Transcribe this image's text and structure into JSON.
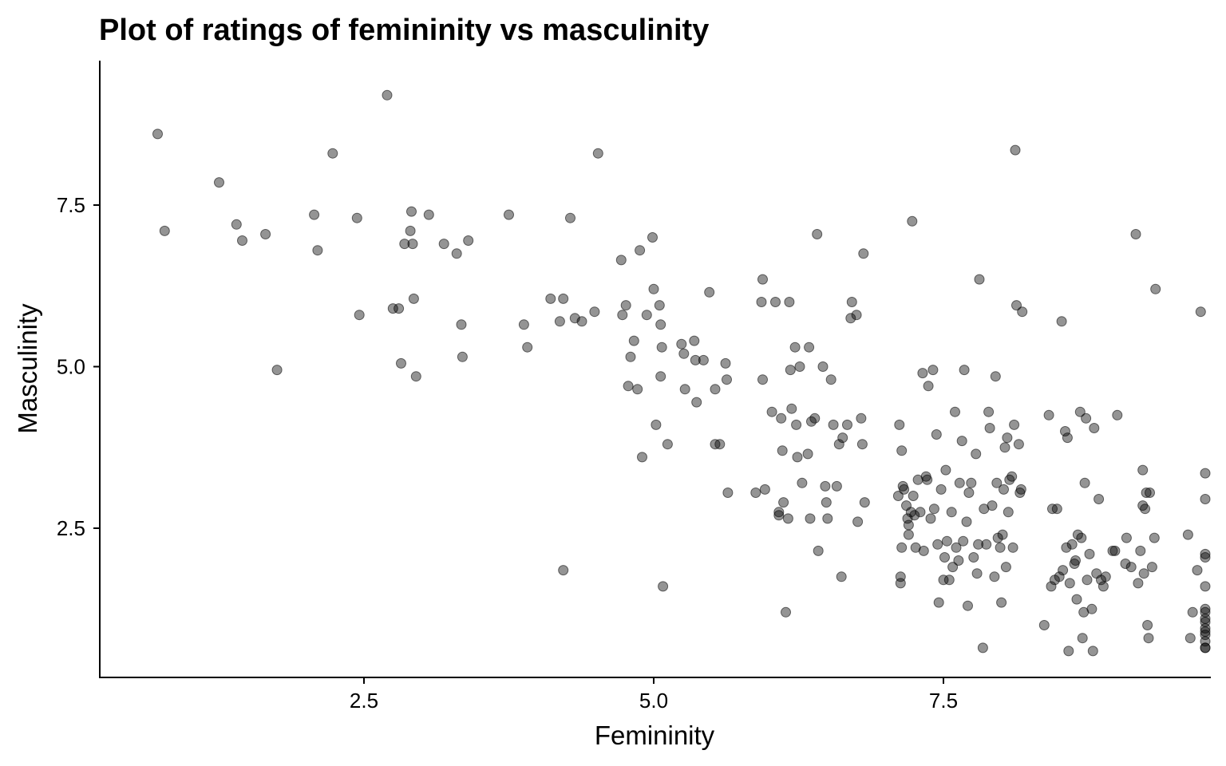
{
  "chart_data": {
    "type": "scatter",
    "title": "Plot of ratings of femininity vs masculinity",
    "xlabel": "Femininity",
    "ylabel": "Masculinity",
    "xlim": [
      0.3,
      9.9
    ],
    "ylim": [
      0.6,
      9.4
    ],
    "xticks": [
      2.5,
      5.0,
      7.5
    ],
    "xtick_labels": [
      "2.5",
      "5.0",
      "7.5"
    ],
    "yticks": [
      2.5,
      5.0,
      7.5
    ],
    "ytick_labels": [
      "2.5",
      "5.0",
      "7.5"
    ],
    "grid": false,
    "legend": "none",
    "point_color": "#000000",
    "point_opacity": 0.42,
    "points": [
      [
        0.72,
        8.6
      ],
      [
        0.78,
        7.1
      ],
      [
        1.25,
        7.85
      ],
      [
        1.4,
        7.2
      ],
      [
        1.45,
        6.95
      ],
      [
        1.65,
        7.05
      ],
      [
        1.75,
        4.95
      ],
      [
        2.07,
        7.35
      ],
      [
        2.1,
        6.8
      ],
      [
        2.23,
        8.3
      ],
      [
        2.44,
        7.3
      ],
      [
        2.46,
        5.8
      ],
      [
        2.7,
        9.2
      ],
      [
        2.75,
        5.9
      ],
      [
        2.8,
        5.9
      ],
      [
        2.82,
        5.05
      ],
      [
        2.85,
        6.9
      ],
      [
        2.9,
        7.1
      ],
      [
        2.91,
        7.4
      ],
      [
        2.92,
        6.9
      ],
      [
        2.93,
        6.05
      ],
      [
        2.95,
        4.85
      ],
      [
        3.06,
        7.35
      ],
      [
        3.19,
        6.9
      ],
      [
        3.3,
        6.75
      ],
      [
        3.34,
        5.65
      ],
      [
        3.35,
        5.15
      ],
      [
        3.4,
        6.95
      ],
      [
        3.75,
        7.35
      ],
      [
        3.88,
        5.65
      ],
      [
        3.91,
        5.3
      ],
      [
        4.11,
        6.05
      ],
      [
        4.19,
        5.7
      ],
      [
        4.22,
        6.05
      ],
      [
        4.22,
        1.85
      ],
      [
        4.28,
        7.3
      ],
      [
        4.32,
        5.75
      ],
      [
        4.38,
        5.7
      ],
      [
        4.49,
        5.85
      ],
      [
        4.52,
        8.3
      ],
      [
        4.72,
        6.65
      ],
      [
        4.73,
        5.8
      ],
      [
        4.76,
        5.95
      ],
      [
        4.78,
        4.7
      ],
      [
        4.8,
        5.15
      ],
      [
        4.83,
        5.4
      ],
      [
        4.86,
        4.65
      ],
      [
        4.88,
        6.8
      ],
      [
        4.9,
        3.6
      ],
      [
        4.94,
        5.8
      ],
      [
        4.99,
        7.0
      ],
      [
        5.0,
        6.2
      ],
      [
        5.02,
        4.1
      ],
      [
        5.05,
        5.95
      ],
      [
        5.06,
        4.85
      ],
      [
        5.06,
        5.65
      ],
      [
        5.07,
        5.3
      ],
      [
        5.08,
        1.6
      ],
      [
        5.12,
        3.8
      ],
      [
        5.24,
        5.35
      ],
      [
        5.26,
        5.2
      ],
      [
        5.27,
        4.65
      ],
      [
        5.35,
        5.4
      ],
      [
        5.36,
        5.1
      ],
      [
        5.37,
        4.45
      ],
      [
        5.43,
        5.1
      ],
      [
        5.48,
        6.15
      ],
      [
        5.53,
        4.65
      ],
      [
        5.53,
        3.8
      ],
      [
        5.57,
        3.8
      ],
      [
        5.62,
        5.05
      ],
      [
        5.63,
        4.8
      ],
      [
        5.64,
        3.05
      ],
      [
        5.88,
        3.05
      ],
      [
        5.93,
        6.0
      ],
      [
        5.94,
        6.35
      ],
      [
        5.94,
        4.8
      ],
      [
        5.96,
        3.1
      ],
      [
        6.02,
        4.3
      ],
      [
        6.05,
        6.0
      ],
      [
        6.08,
        2.7
      ],
      [
        6.08,
        2.75
      ],
      [
        6.1,
        4.2
      ],
      [
        6.11,
        3.7
      ],
      [
        6.12,
        2.9
      ],
      [
        6.14,
        1.2
      ],
      [
        6.16,
        2.65
      ],
      [
        6.17,
        6.0
      ],
      [
        6.18,
        4.95
      ],
      [
        6.19,
        4.35
      ],
      [
        6.22,
        5.3
      ],
      [
        6.23,
        4.1
      ],
      [
        6.24,
        3.6
      ],
      [
        6.26,
        5.0
      ],
      [
        6.28,
        3.2
      ],
      [
        6.33,
        3.65
      ],
      [
        6.34,
        5.3
      ],
      [
        6.35,
        2.65
      ],
      [
        6.36,
        4.15
      ],
      [
        6.39,
        4.2
      ],
      [
        6.41,
        7.05
      ],
      [
        6.42,
        2.15
      ],
      [
        6.46,
        5.0
      ],
      [
        6.48,
        3.15
      ],
      [
        6.49,
        2.9
      ],
      [
        6.5,
        2.65
      ],
      [
        6.53,
        4.8
      ],
      [
        6.55,
        4.1
      ],
      [
        6.58,
        3.15
      ],
      [
        6.6,
        3.8
      ],
      [
        6.62,
        1.75
      ],
      [
        6.63,
        3.9
      ],
      [
        6.67,
        4.1
      ],
      [
        6.7,
        5.75
      ],
      [
        6.71,
        6.0
      ],
      [
        6.75,
        5.8
      ],
      [
        6.76,
        2.6
      ],
      [
        6.79,
        4.2
      ],
      [
        6.8,
        3.8
      ],
      [
        6.81,
        6.75
      ],
      [
        6.82,
        2.9
      ],
      [
        7.11,
        3.0
      ],
      [
        7.12,
        4.1
      ],
      [
        7.13,
        1.75
      ],
      [
        7.13,
        1.65
      ],
      [
        7.14,
        3.7
      ],
      [
        7.14,
        2.2
      ],
      [
        7.15,
        3.15
      ],
      [
        7.16,
        3.1
      ],
      [
        7.18,
        2.85
      ],
      [
        7.19,
        2.65
      ],
      [
        7.2,
        2.55
      ],
      [
        7.2,
        2.4
      ],
      [
        7.22,
        2.75
      ],
      [
        7.23,
        7.25
      ],
      [
        7.24,
        3.0
      ],
      [
        7.25,
        2.7
      ],
      [
        7.26,
        2.2
      ],
      [
        7.28,
        3.25
      ],
      [
        7.3,
        2.75
      ],
      [
        7.32,
        4.9
      ],
      [
        7.33,
        2.15
      ],
      [
        7.35,
        3.3
      ],
      [
        7.36,
        3.25
      ],
      [
        7.37,
        4.7
      ],
      [
        7.39,
        2.65
      ],
      [
        7.41,
        4.95
      ],
      [
        7.42,
        2.8
      ],
      [
        7.44,
        3.95
      ],
      [
        7.45,
        2.25
      ],
      [
        7.46,
        1.35
      ],
      [
        7.48,
        3.1
      ],
      [
        7.5,
        1.7
      ],
      [
        7.51,
        2.05
      ],
      [
        7.52,
        3.4
      ],
      [
        7.53,
        2.3
      ],
      [
        7.55,
        1.7
      ],
      [
        7.57,
        2.75
      ],
      [
        7.58,
        1.9
      ],
      [
        7.6,
        4.3
      ],
      [
        7.61,
        2.2
      ],
      [
        7.63,
        2.0
      ],
      [
        7.64,
        3.2
      ],
      [
        7.66,
        3.85
      ],
      [
        7.67,
        2.3
      ],
      [
        7.68,
        4.95
      ],
      [
        7.7,
        2.6
      ],
      [
        7.71,
        1.3
      ],
      [
        7.72,
        3.05
      ],
      [
        7.74,
        3.2
      ],
      [
        7.76,
        2.05
      ],
      [
        7.78,
        3.65
      ],
      [
        7.79,
        1.8
      ],
      [
        7.8,
        2.25
      ],
      [
        7.81,
        6.35
      ],
      [
        7.84,
        0.65
      ],
      [
        7.85,
        2.8
      ],
      [
        7.87,
        2.25
      ],
      [
        7.89,
        4.3
      ],
      [
        7.9,
        4.05
      ],
      [
        7.92,
        2.85
      ],
      [
        7.94,
        1.75
      ],
      [
        7.95,
        4.85
      ],
      [
        7.96,
        3.2
      ],
      [
        7.97,
        2.35
      ],
      [
        7.99,
        2.2
      ],
      [
        8.0,
        1.35
      ],
      [
        8.01,
        2.4
      ],
      [
        8.02,
        3.1
      ],
      [
        8.03,
        3.75
      ],
      [
        8.04,
        1.9
      ],
      [
        8.05,
        3.9
      ],
      [
        8.06,
        2.75
      ],
      [
        8.07,
        3.25
      ],
      [
        8.09,
        3.3
      ],
      [
        8.1,
        2.2
      ],
      [
        8.11,
        4.1
      ],
      [
        8.12,
        8.35
      ],
      [
        8.13,
        5.95
      ],
      [
        8.15,
        3.8
      ],
      [
        8.16,
        3.05
      ],
      [
        8.17,
        3.1
      ],
      [
        8.18,
        5.85
      ],
      [
        8.37,
        1.0
      ],
      [
        8.41,
        4.25
      ],
      [
        8.43,
        1.6
      ],
      [
        8.44,
        2.8
      ],
      [
        8.46,
        1.7
      ],
      [
        8.48,
        2.8
      ],
      [
        8.5,
        1.75
      ],
      [
        8.52,
        5.7
      ],
      [
        8.53,
        1.85
      ],
      [
        8.55,
        4.0
      ],
      [
        8.56,
        2.2
      ],
      [
        8.57,
        3.9
      ],
      [
        8.58,
        0.6
      ],
      [
        8.59,
        1.65
      ],
      [
        8.61,
        2.25
      ],
      [
        8.63,
        1.95
      ],
      [
        8.64,
        2.0
      ],
      [
        8.65,
        1.4
      ],
      [
        8.66,
        2.4
      ],
      [
        8.68,
        4.3
      ],
      [
        8.69,
        2.35
      ],
      [
        8.7,
        0.8
      ],
      [
        8.71,
        1.2
      ],
      [
        8.72,
        3.2
      ],
      [
        8.73,
        4.2
      ],
      [
        8.74,
        1.7
      ],
      [
        8.76,
        2.1
      ],
      [
        8.78,
        1.25
      ],
      [
        8.79,
        0.6
      ],
      [
        8.8,
        4.05
      ],
      [
        8.82,
        1.8
      ],
      [
        8.84,
        2.95
      ],
      [
        8.86,
        1.7
      ],
      [
        8.88,
        1.6
      ],
      [
        8.9,
        1.75
      ],
      [
        8.96,
        2.15
      ],
      [
        8.98,
        2.15
      ],
      [
        9.0,
        4.25
      ],
      [
        9.07,
        1.95
      ],
      [
        9.08,
        2.35
      ],
      [
        9.12,
        1.9
      ],
      [
        9.16,
        7.05
      ],
      [
        9.18,
        1.65
      ],
      [
        9.2,
        2.15
      ],
      [
        9.22,
        3.4
      ],
      [
        9.22,
        2.85
      ],
      [
        9.23,
        1.8
      ],
      [
        9.24,
        2.8
      ],
      [
        9.25,
        3.05
      ],
      [
        9.26,
        1.0
      ],
      [
        9.27,
        0.8
      ],
      [
        9.28,
        3.05
      ],
      [
        9.3,
        1.9
      ],
      [
        9.32,
        2.35
      ],
      [
        9.33,
        6.2
      ],
      [
        9.61,
        2.4
      ],
      [
        9.63,
        0.8
      ],
      [
        9.65,
        1.2
      ],
      [
        9.69,
        1.85
      ],
      [
        9.72,
        5.85
      ],
      [
        9.76,
        1.2
      ],
      [
        9.96,
        0.65
      ],
      [
        10.02,
        1.6
      ],
      [
        10.08,
        1.05
      ],
      [
        10.21,
        0.75
      ],
      [
        10.23,
        0.95
      ],
      [
        10.28,
        2.1
      ],
      [
        10.33,
        2.05
      ],
      [
        10.37,
        3.35
      ],
      [
        10.42,
        0.85
      ],
      [
        10.45,
        1.1
      ],
      [
        10.52,
        1.25
      ],
      [
        10.53,
        0.9
      ],
      [
        10.54,
        0.65
      ],
      [
        10.55,
        2.95
      ]
    ]
  }
}
